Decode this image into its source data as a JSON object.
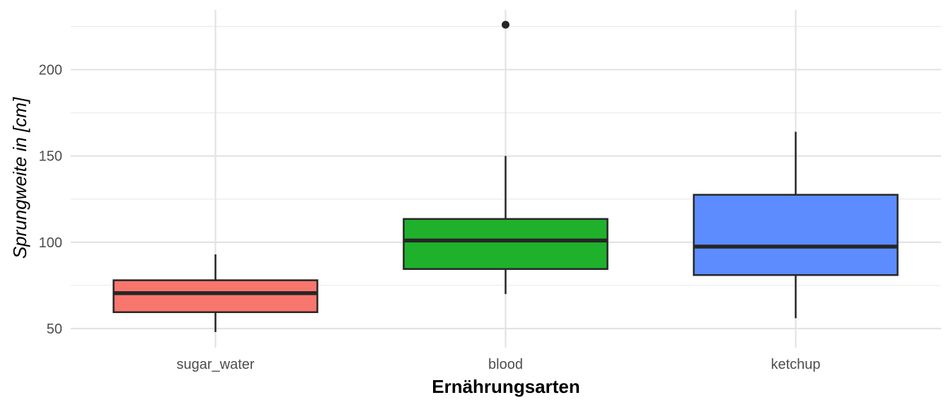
{
  "chart_data": {
    "type": "boxplot",
    "title": "",
    "xlabel": "Ernährungsarten",
    "ylabel": "Sprungweite in [cm]",
    "ylim": [
      37,
      232
    ],
    "yticks": [
      50,
      100,
      150,
      200
    ],
    "grid": true,
    "legend": "none",
    "categories": [
      "sugar_water",
      "blood",
      "ketchup"
    ],
    "boxes": [
      {
        "category": "sugar_water",
        "color": "#F8766D",
        "whisker_low": 48,
        "q1": 59.5,
        "median": 70.5,
        "q3": 78,
        "whisker_high": 93,
        "outliers": []
      },
      {
        "category": "blood",
        "color": "#1FB12C",
        "whisker_low": 70,
        "q1": 84.5,
        "median": 101,
        "q3": 113.5,
        "whisker_high": 150,
        "outliers": [
          226
        ]
      },
      {
        "category": "ketchup",
        "color": "#5C8CFF",
        "whisker_low": 56,
        "q1": 81,
        "median": 97.5,
        "q3": 127.5,
        "whisker_high": 164,
        "outliers": []
      }
    ]
  }
}
